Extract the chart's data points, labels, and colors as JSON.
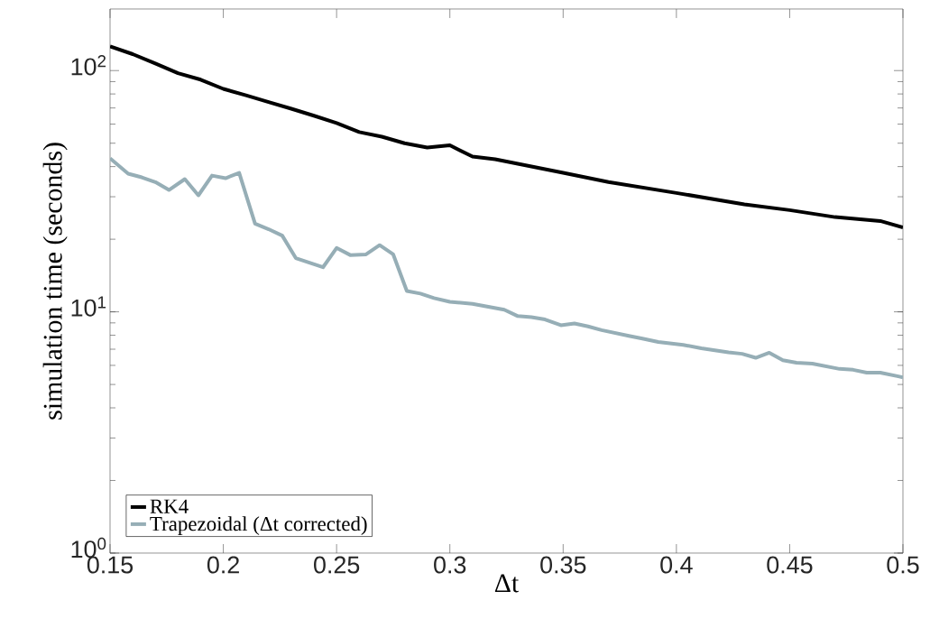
{
  "chart_data": {
    "type": "line",
    "xlabel": "Δt",
    "ylabel": "simulation time (seconds)",
    "log": "y",
    "legend": "bottom left",
    "line_style": "solid",
    "xlim": [
      0.15,
      0.5
    ],
    "ylim": [
      1,
      180
    ],
    "xticks": [
      0.15,
      0.2,
      0.25,
      0.3,
      0.35,
      0.4,
      0.45,
      0.5
    ],
    "yticks": [
      {
        "value": 1,
        "label": "10$^{0}$"
      },
      {
        "value": 10,
        "label": "10$^{1}$"
      },
      {
        "value": 100,
        "label": "10$^{2}$"
      }
    ],
    "series": [
      {
        "name": "RK4",
        "color": "#000000",
        "x": [
          0.15,
          0.16,
          0.17,
          0.18,
          0.19,
          0.2,
          0.21,
          0.22,
          0.23,
          0.24,
          0.25,
          0.26,
          0.27,
          0.28,
          0.29,
          0.3,
          0.31,
          0.32,
          0.33,
          0.35,
          0.37,
          0.4,
          0.43,
          0.45,
          0.47,
          0.49,
          0.5
        ],
        "values": [
          126,
          117,
          107,
          97.5,
          91.7,
          84,
          79,
          74,
          69.5,
          65,
          60.6,
          55.6,
          53.2,
          50,
          48,
          49,
          44,
          42.9,
          41.1,
          37.7,
          34.5,
          31.1,
          27.9,
          26.4,
          24.7,
          23.8,
          22.4
        ]
      },
      {
        "name": "Trapezoidal (Δt corrected)",
        "color": "#96aeb6",
        "x": [
          0.15,
          0.158,
          0.164,
          0.17,
          0.176,
          0.183,
          0.189,
          0.195,
          0.201,
          0.207,
          0.214,
          0.22,
          0.226,
          0.232,
          0.238,
          0.244,
          0.25,
          0.256,
          0.263,
          0.269,
          0.275,
          0.281,
          0.287,
          0.293,
          0.3,
          0.31,
          0.324,
          0.33,
          0.336,
          0.342,
          0.349,
          0.355,
          0.361,
          0.367,
          0.379,
          0.385,
          0.392,
          0.403,
          0.411,
          0.423,
          0.429,
          0.435,
          0.441,
          0.447,
          0.453,
          0.46,
          0.472,
          0.478,
          0.484,
          0.49,
          0.498,
          0.5
        ],
        "values": [
          43.3,
          37.4,
          36.1,
          34.5,
          32,
          35.5,
          30.4,
          36.7,
          35.8,
          37.7,
          23.2,
          22,
          20.7,
          16.7,
          16,
          15.3,
          18.4,
          17.2,
          17.3,
          18.9,
          17.3,
          12.2,
          11.9,
          11.4,
          11,
          10.8,
          10.2,
          9.6,
          9.5,
          9.3,
          8.8,
          8.95,
          8.7,
          8.4,
          7.95,
          7.75,
          7.5,
          7.3,
          7.06,
          6.8,
          6.7,
          6.45,
          6.77,
          6.3,
          6.15,
          6.1,
          5.8,
          5.75,
          5.6,
          5.6,
          5.4,
          5.35
        ]
      }
    ]
  }
}
